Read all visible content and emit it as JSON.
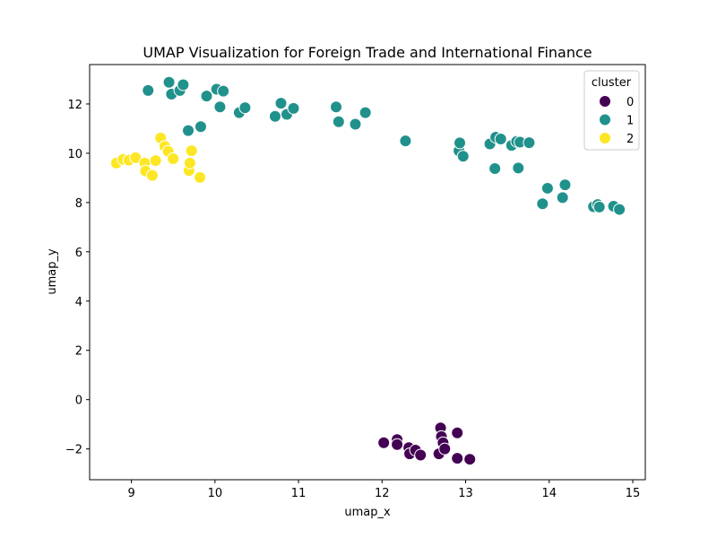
{
  "chart_data": {
    "type": "scatter",
    "title": "UMAP Visualization for Foreign Trade and International Finance",
    "xlabel": "umap_x",
    "ylabel": "umap_y",
    "xlim": [
      8.5,
      15.15
    ],
    "ylim": [
      -3.25,
      13.6
    ],
    "xticks": [
      9,
      10,
      11,
      12,
      13,
      14,
      15
    ],
    "yticks": [
      -2,
      0,
      2,
      4,
      6,
      8,
      10,
      12
    ],
    "grid": false,
    "legend": {
      "title": "cluster",
      "position": "top-right"
    },
    "series": [
      {
        "name": "0",
        "color": "#440154",
        "points": [
          [
            12.02,
            -1.75
          ],
          [
            12.18,
            -1.62
          ],
          [
            12.18,
            -1.82
          ],
          [
            12.32,
            -1.95
          ],
          [
            12.33,
            -2.2
          ],
          [
            12.4,
            -2.05
          ],
          [
            12.46,
            -2.25
          ],
          [
            12.68,
            -2.2
          ],
          [
            12.7,
            -1.15
          ],
          [
            12.71,
            -1.5
          ],
          [
            12.73,
            -1.75
          ],
          [
            12.75,
            -2.0
          ],
          [
            12.9,
            -1.35
          ],
          [
            12.9,
            -2.38
          ],
          [
            13.05,
            -2.42
          ]
        ]
      },
      {
        "name": "1",
        "color": "#21918c",
        "points": [
          [
            9.2,
            12.55
          ],
          [
            9.45,
            12.88
          ],
          [
            9.48,
            12.4
          ],
          [
            9.58,
            12.55
          ],
          [
            9.62,
            12.78
          ],
          [
            9.68,
            10.92
          ],
          [
            9.83,
            11.08
          ],
          [
            9.9,
            12.32
          ],
          [
            10.02,
            12.6
          ],
          [
            10.06,
            11.88
          ],
          [
            10.1,
            12.52
          ],
          [
            10.29,
            11.65
          ],
          [
            10.36,
            11.85
          ],
          [
            10.72,
            11.5
          ],
          [
            10.79,
            12.03
          ],
          [
            10.86,
            11.58
          ],
          [
            10.94,
            11.82
          ],
          [
            11.45,
            11.88
          ],
          [
            11.48,
            11.28
          ],
          [
            11.68,
            11.18
          ],
          [
            11.8,
            11.65
          ],
          [
            12.28,
            10.5
          ],
          [
            12.92,
            10.1
          ],
          [
            12.93,
            10.42
          ],
          [
            12.97,
            9.88
          ],
          [
            13.29,
            10.38
          ],
          [
            13.35,
            9.38
          ],
          [
            13.36,
            10.65
          ],
          [
            13.42,
            10.58
          ],
          [
            13.55,
            10.32
          ],
          [
            13.61,
            10.48
          ],
          [
            13.65,
            10.45
          ],
          [
            13.63,
            9.4
          ],
          [
            13.76,
            10.43
          ],
          [
            13.92,
            7.95
          ],
          [
            13.98,
            8.58
          ],
          [
            14.16,
            8.2
          ],
          [
            14.19,
            8.72
          ],
          [
            14.53,
            7.83
          ],
          [
            14.58,
            7.92
          ],
          [
            14.6,
            7.82
          ],
          [
            14.77,
            7.85
          ],
          [
            14.84,
            7.72
          ]
        ]
      },
      {
        "name": "2",
        "color": "#fde725",
        "points": [
          [
            8.82,
            9.6
          ],
          [
            8.9,
            9.75
          ],
          [
            8.97,
            9.72
          ],
          [
            9.05,
            9.82
          ],
          [
            9.16,
            9.6
          ],
          [
            9.17,
            9.28
          ],
          [
            9.25,
            9.1
          ],
          [
            9.29,
            9.7
          ],
          [
            9.35,
            10.62
          ],
          [
            9.4,
            10.28
          ],
          [
            9.44,
            10.08
          ],
          [
            9.5,
            9.78
          ],
          [
            9.69,
            9.3
          ],
          [
            9.7,
            9.6
          ],
          [
            9.72,
            10.1
          ],
          [
            9.82,
            9.02
          ]
        ]
      }
    ]
  }
}
